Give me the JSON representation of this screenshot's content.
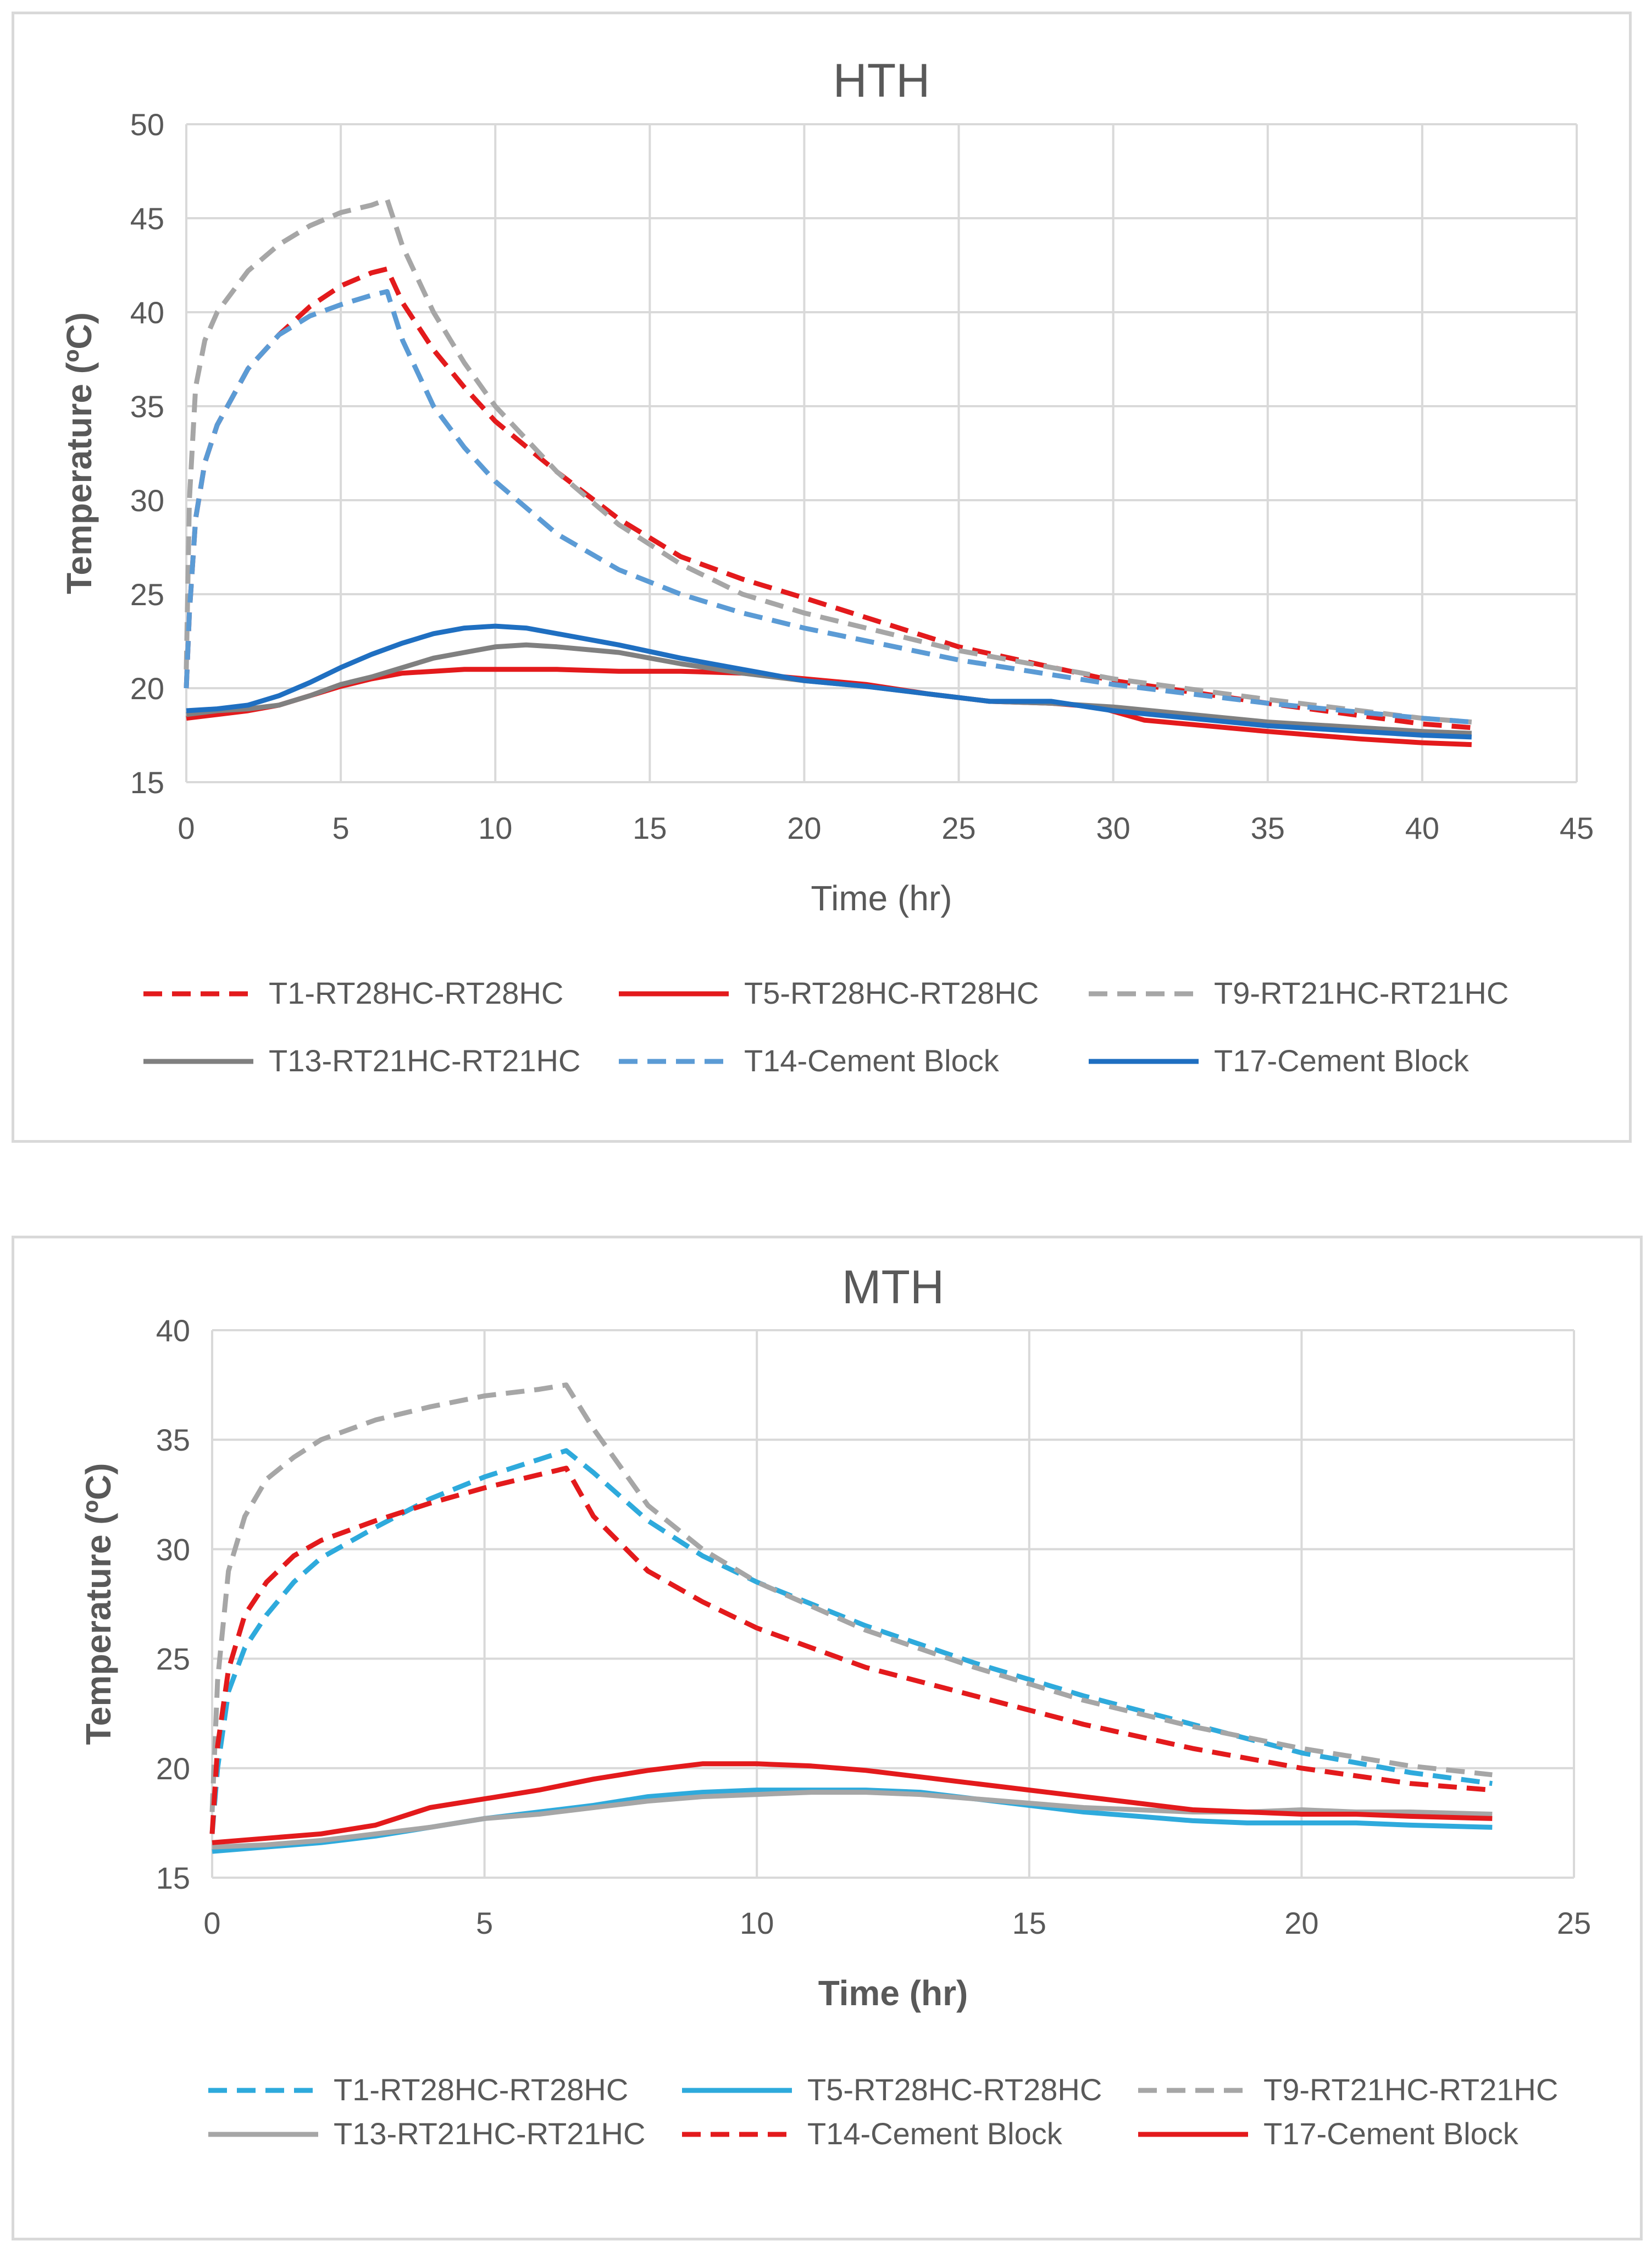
{
  "chart_data": [
    {
      "type": "line",
      "title": "HTH",
      "xlabel": "Time (hr)",
      "ylabel": "Temperature (ºC)",
      "xlim": [
        0,
        45
      ],
      "ylim": [
        15,
        50
      ],
      "xticks": [
        0,
        5,
        10,
        15,
        20,
        25,
        30,
        35,
        40,
        45
      ],
      "yticks": [
        15,
        20,
        25,
        30,
        35,
        40,
        45,
        50
      ],
      "grid": true,
      "legend_position": "bottom",
      "series": [
        {
          "name": "T1-RT28HC-RT28HC",
          "color": "#e31a1c",
          "dash": "dashed",
          "x": [
            0,
            0.1,
            0.3,
            0.6,
            1,
            2,
            3,
            4,
            5,
            6,
            6.5,
            7,
            8,
            9,
            10,
            12,
            14,
            16,
            18,
            20,
            25,
            30,
            35,
            40,
            41.6
          ],
          "y": [
            20,
            24,
            29,
            32,
            34,
            37,
            38.8,
            40.3,
            41.4,
            42.1,
            42.3,
            40.5,
            38,
            36,
            34.2,
            31.5,
            29,
            27,
            25.8,
            24.8,
            22.2,
            20.4,
            19.2,
            18.1,
            17.9
          ]
        },
        {
          "name": "T5-RT28HC-RT28HC",
          "color": "#e31a1c",
          "dash": "solid",
          "x": [
            0,
            1,
            2,
            3,
            4,
            5,
            6,
            7,
            8,
            9,
            10,
            12,
            14,
            16,
            18,
            20,
            22,
            24,
            26,
            28,
            29.5,
            31,
            35,
            38,
            40,
            41.6
          ],
          "y": [
            18.4,
            18.6,
            18.8,
            19.1,
            19.6,
            20.1,
            20.5,
            20.8,
            20.9,
            21,
            21,
            21,
            20.9,
            20.9,
            20.8,
            20.5,
            20.2,
            19.7,
            19.3,
            19.2,
            19,
            18.3,
            17.7,
            17.3,
            17.1,
            17
          ]
        },
        {
          "name": "T9-RT21HC-RT21HC",
          "color": "#a6a6a6",
          "dash": "dashed",
          "x": [
            0,
            0.1,
            0.3,
            0.6,
            1,
            2,
            3,
            4,
            5,
            6,
            6.5,
            7,
            8,
            9,
            10,
            12,
            14,
            16,
            18,
            20,
            25,
            30,
            35,
            40,
            41.6
          ],
          "y": [
            21,
            30,
            36,
            38.5,
            40,
            42.2,
            43.6,
            44.6,
            45.3,
            45.7,
            46,
            43.5,
            40,
            37.3,
            35,
            31.5,
            28.7,
            26.6,
            25,
            24,
            22,
            20.5,
            19.4,
            18.4,
            18.2
          ]
        },
        {
          "name": "T13-RT21HC-RT21HC",
          "color": "#808080",
          "dash": "solid",
          "x": [
            0,
            1,
            2,
            3,
            4,
            5,
            6,
            7,
            8,
            9,
            10,
            11,
            12,
            14,
            16,
            18,
            20,
            22,
            24,
            26,
            28,
            30,
            35,
            40,
            41.6
          ],
          "y": [
            18.6,
            18.8,
            18.9,
            19.1,
            19.6,
            20.2,
            20.6,
            21.1,
            21.6,
            21.9,
            22.2,
            22.3,
            22.2,
            21.9,
            21.3,
            20.8,
            20.4,
            20.1,
            19.7,
            19.3,
            19.2,
            19,
            18.2,
            17.7,
            17.6
          ]
        },
        {
          "name": "T14-Cement Block",
          "color": "#5b9bd5",
          "dash": "dashed",
          "x": [
            0,
            0.1,
            0.3,
            0.6,
            1,
            2,
            3,
            4,
            5,
            6,
            6.5,
            7,
            8,
            9,
            10,
            12,
            14,
            16,
            18,
            20,
            25,
            30,
            35,
            40,
            41.6
          ],
          "y": [
            20,
            24,
            29,
            32,
            34,
            37,
            38.8,
            39.8,
            40.4,
            40.9,
            41.1,
            38.5,
            35,
            32.8,
            31,
            28.2,
            26.3,
            25,
            24,
            23.2,
            21.5,
            20.2,
            19.2,
            18.4,
            18.2
          ]
        },
        {
          "name": "T17-Cement Block",
          "color": "#1f6fc1",
          "dash": "solid",
          "x": [
            0,
            1,
            2,
            3,
            4,
            5,
            6,
            7,
            8,
            9,
            10,
            11,
            12,
            14,
            16,
            18,
            20,
            22,
            24,
            26,
            28,
            30,
            35,
            40,
            41.6
          ],
          "y": [
            18.8,
            18.9,
            19.1,
            19.6,
            20.3,
            21.1,
            21.8,
            22.4,
            22.9,
            23.2,
            23.3,
            23.2,
            22.9,
            22.3,
            21.6,
            21,
            20.4,
            20.1,
            19.7,
            19.3,
            19.3,
            18.8,
            18,
            17.5,
            17.4
          ]
        }
      ]
    },
    {
      "type": "line",
      "title": "MTH",
      "xlabel": "Time (hr)",
      "ylabel": "Temperature (ºC)",
      "xlim": [
        0,
        25
      ],
      "ylim": [
        15,
        40
      ],
      "xticks": [
        0,
        5,
        10,
        15,
        20,
        25
      ],
      "yticks": [
        15,
        20,
        25,
        30,
        35,
        40
      ],
      "grid": true,
      "legend_position": "bottom",
      "series": [
        {
          "name": "T1-RT28HC-RT28HC",
          "color": "#2eaadc",
          "dash": "dashed",
          "x": [
            0,
            0.1,
            0.3,
            0.6,
            1,
            1.5,
            2,
            3,
            4,
            5,
            6,
            6.5,
            7,
            8,
            9,
            10,
            12,
            14,
            16,
            18,
            20,
            22,
            23.5
          ],
          "y": [
            17,
            20,
            23.5,
            25.5,
            27,
            28.5,
            29.6,
            31,
            32.3,
            33.3,
            34.1,
            34.5,
            33.5,
            31.3,
            29.7,
            28.5,
            26.5,
            24.8,
            23.3,
            22,
            20.7,
            19.8,
            19.3
          ]
        },
        {
          "name": "T5-RT28HC-RT28HC",
          "color": "#2eaadc",
          "dash": "solid",
          "x": [
            0,
            1,
            2,
            3,
            4,
            5,
            6,
            7,
            8,
            9,
            10,
            11,
            12,
            13,
            14,
            15,
            16,
            17,
            18,
            19,
            20,
            21,
            22,
            23.5
          ],
          "y": [
            16.2,
            16.4,
            16.6,
            16.9,
            17.3,
            17.7,
            18,
            18.3,
            18.7,
            18.9,
            19,
            19,
            19,
            18.9,
            18.6,
            18.3,
            18,
            17.8,
            17.6,
            17.5,
            17.5,
            17.5,
            17.4,
            17.3
          ]
        },
        {
          "name": "T9-RT21HC-RT21HC",
          "color": "#a6a6a6",
          "dash": "dashed",
          "x": [
            0,
            0.1,
            0.3,
            0.6,
            1,
            1.5,
            2,
            3,
            4,
            5,
            6,
            6.5,
            7,
            8,
            9,
            10,
            12,
            14,
            16,
            18,
            20,
            22,
            23.5
          ],
          "y": [
            18,
            24,
            29,
            31.5,
            33.2,
            34.2,
            35,
            35.9,
            36.5,
            37,
            37.3,
            37.5,
            35.5,
            32,
            30,
            28.5,
            26.3,
            24.6,
            23.1,
            21.9,
            20.9,
            20.1,
            19.7
          ]
        },
        {
          "name": "T13-RT21HC-RT21HC",
          "color": "#a6a6a6",
          "dash": "solid",
          "x": [
            0,
            1,
            2,
            3,
            4,
            5,
            6,
            7,
            8,
            9,
            10,
            11,
            12,
            13,
            14,
            15,
            16,
            17,
            18,
            19,
            20,
            21,
            22,
            23.5
          ],
          "y": [
            16.4,
            16.5,
            16.7,
            17,
            17.3,
            17.7,
            17.9,
            18.2,
            18.5,
            18.7,
            18.8,
            18.9,
            18.9,
            18.8,
            18.6,
            18.4,
            18.2,
            18.1,
            18,
            18,
            18.1,
            18,
            18,
            17.9
          ]
        },
        {
          "name": "T14-Cement Block",
          "color": "#e31a1c",
          "dash": "dashed",
          "x": [
            0,
            0.1,
            0.3,
            0.6,
            1,
            1.5,
            2,
            3,
            4,
            5,
            6,
            6.5,
            7,
            8,
            9,
            10,
            12,
            14,
            16,
            18,
            20,
            22,
            23.5
          ],
          "y": [
            17,
            21,
            24.5,
            27,
            28.5,
            29.7,
            30.4,
            31.3,
            32.1,
            32.8,
            33.4,
            33.7,
            31.5,
            29,
            27.6,
            26.4,
            24.6,
            23.3,
            22,
            20.9,
            20,
            19.3,
            19
          ]
        },
        {
          "name": "T17-Cement Block",
          "color": "#e31a1c",
          "dash": "solid",
          "x": [
            0,
            1,
            2,
            3,
            4,
            5,
            6,
            7,
            8,
            9,
            10,
            11,
            12,
            13,
            14,
            15,
            16,
            17,
            18,
            19,
            20,
            21,
            22,
            23.5
          ],
          "y": [
            16.6,
            16.8,
            17,
            17.4,
            18.2,
            18.6,
            19,
            19.5,
            19.9,
            20.2,
            20.2,
            20.1,
            19.9,
            19.6,
            19.3,
            19,
            18.7,
            18.4,
            18.1,
            18,
            17.9,
            17.9,
            17.8,
            17.7
          ]
        }
      ]
    }
  ]
}
